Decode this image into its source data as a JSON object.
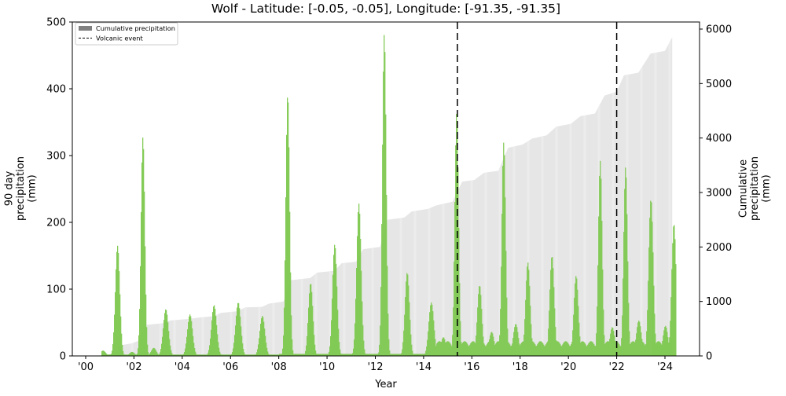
{
  "chart_data": {
    "type": "bar",
    "title": "Wolf - Latitude: [-0.05, -0.05], Longitude: [-91.35, -91.35]",
    "xlabel": "Year",
    "ylabel_left": "90 day\nprecipitation\n(mm)",
    "ylabel_right": "Cumulative\nprecipitation\n(mm)",
    "xlim": [
      1999.6,
      2025.6
    ],
    "ylim_left": [
      0,
      500
    ],
    "ylim_right": [
      0,
      6150
    ],
    "x_ticks": [
      2000,
      2002,
      2004,
      2006,
      2008,
      2010,
      2012,
      2014,
      2016,
      2018,
      2020,
      2022,
      2024
    ],
    "x_tick_labels": [
      "'00",
      "'02",
      "'04",
      "'06",
      "'08",
      "'10",
      "'12",
      "'14",
      "'16",
      "'18",
      "'20",
      "'22",
      "'24"
    ],
    "y_ticks_left": [
      0,
      100,
      200,
      300,
      400,
      500
    ],
    "y_ticks_right": [
      0,
      1000,
      2000,
      3000,
      4000,
      5000,
      6000
    ],
    "grid": false,
    "legend": {
      "position": "upper left",
      "entries": [
        {
          "label": "Cumulative precipitation",
          "style": "patch",
          "color": "#808080"
        },
        {
          "label": "Volcanic event",
          "style": "dashed-line",
          "color": "#000000"
        }
      ]
    },
    "volcanic_events": [
      2015.4,
      2022.0
    ],
    "series": [
      {
        "name": "90 day precipitation",
        "axis": "left",
        "type": "bar",
        "color": "#7ec850",
        "peaks": [
          {
            "x": 2000.7,
            "value": 8
          },
          {
            "x": 2001.3,
            "value": 165
          },
          {
            "x": 2001.9,
            "value": 6
          },
          {
            "x": 2002.35,
            "value": 328
          },
          {
            "x": 2002.8,
            "value": 12
          },
          {
            "x": 2003.3,
            "value": 70
          },
          {
            "x": 2004.3,
            "value": 62
          },
          {
            "x": 2005.3,
            "value": 76
          },
          {
            "x": 2006.3,
            "value": 80
          },
          {
            "x": 2007.3,
            "value": 60
          },
          {
            "x": 2008.35,
            "value": 392
          },
          {
            "x": 2009.3,
            "value": 109
          },
          {
            "x": 2010.3,
            "value": 167
          },
          {
            "x": 2011.3,
            "value": 228
          },
          {
            "x": 2012.35,
            "value": 482
          },
          {
            "x": 2013.3,
            "value": 125
          },
          {
            "x": 2014.3,
            "value": 80
          },
          {
            "x": 2014.8,
            "value": 28
          },
          {
            "x": 2015.35,
            "value": 365
          },
          {
            "x": 2016.3,
            "value": 106
          },
          {
            "x": 2016.8,
            "value": 36
          },
          {
            "x": 2017.3,
            "value": 320
          },
          {
            "x": 2017.8,
            "value": 48
          },
          {
            "x": 2018.3,
            "value": 140
          },
          {
            "x": 2019.3,
            "value": 150
          },
          {
            "x": 2020.3,
            "value": 120
          },
          {
            "x": 2021.3,
            "value": 292
          },
          {
            "x": 2021.8,
            "value": 43
          },
          {
            "x": 2022.35,
            "value": 283
          },
          {
            "x": 2022.9,
            "value": 53
          },
          {
            "x": 2023.4,
            "value": 235
          },
          {
            "x": 2024.0,
            "value": 45
          },
          {
            "x": 2024.35,
            "value": 198
          }
        ]
      },
      {
        "name": "Cumulative precipitation",
        "axis": "right",
        "type": "area",
        "color": "#e6e6e6",
        "points": [
          [
            2000.7,
            0
          ],
          [
            2001.2,
            60
          ],
          [
            2001.5,
            200
          ],
          [
            2001.9,
            230
          ],
          [
            2002.2,
            280
          ],
          [
            2002.5,
            570
          ],
          [
            2003.2,
            600
          ],
          [
            2003.5,
            650
          ],
          [
            2004.3,
            680
          ],
          [
            2004.6,
            700
          ],
          [
            2005.3,
            730
          ],
          [
            2005.6,
            790
          ],
          [
            2006.3,
            820
          ],
          [
            2006.6,
            890
          ],
          [
            2007.3,
            900
          ],
          [
            2007.6,
            960
          ],
          [
            2008.2,
            1000
          ],
          [
            2008.5,
            1390
          ],
          [
            2009.3,
            1430
          ],
          [
            2009.6,
            1530
          ],
          [
            2010.3,
            1560
          ],
          [
            2010.6,
            1700
          ],
          [
            2011.2,
            1730
          ],
          [
            2011.5,
            1960
          ],
          [
            2012.2,
            2000
          ],
          [
            2012.5,
            2500
          ],
          [
            2013.2,
            2540
          ],
          [
            2013.5,
            2650
          ],
          [
            2014.2,
            2700
          ],
          [
            2014.5,
            2760
          ],
          [
            2015.2,
            2830
          ],
          [
            2015.6,
            3200
          ],
          [
            2016.1,
            3230
          ],
          [
            2016.5,
            3360
          ],
          [
            2017.1,
            3400
          ],
          [
            2017.5,
            3820
          ],
          [
            2018.1,
            3880
          ],
          [
            2018.5,
            3990
          ],
          [
            2019.1,
            4050
          ],
          [
            2019.5,
            4210
          ],
          [
            2020.1,
            4260
          ],
          [
            2020.5,
            4400
          ],
          [
            2021.1,
            4450
          ],
          [
            2021.5,
            4780
          ],
          [
            2022.0,
            4850
          ],
          [
            2022.3,
            5150
          ],
          [
            2022.9,
            5200
          ],
          [
            2023.4,
            5550
          ],
          [
            2024.0,
            5600
          ],
          [
            2024.3,
            5850
          ]
        ]
      }
    ]
  }
}
